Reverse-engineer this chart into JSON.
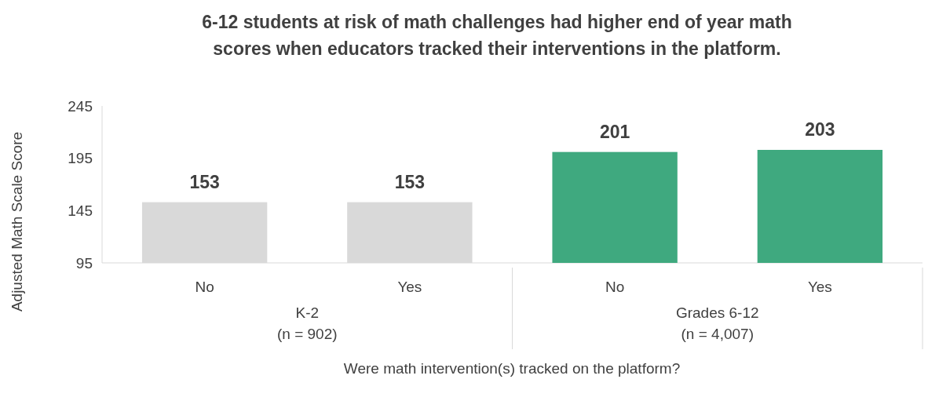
{
  "chart_data": {
    "type": "bar",
    "title": "6-12 students at risk of math challenges had higher end of year math scores when educators tracked their interventions in the platform.",
    "xlabel": "Were math intervention(s) tracked on the platform?",
    "ylabel": "Adjusted Math Scale Score",
    "categories": [
      "No",
      "Yes",
      "No",
      "Yes"
    ],
    "values": [
      153,
      153,
      201,
      203
    ],
    "colors": [
      "#d9d9d9",
      "#d9d9d9",
      "#3fa97f",
      "#3fa97f"
    ],
    "ylim": [
      95,
      245
    ],
    "yticks": [
      95,
      145,
      195,
      245
    ],
    "data_labels": true,
    "annotations": [
      "K-2\n(n = 902)",
      "Grades 6-12\n(n = 4,007)"
    ]
  }
}
